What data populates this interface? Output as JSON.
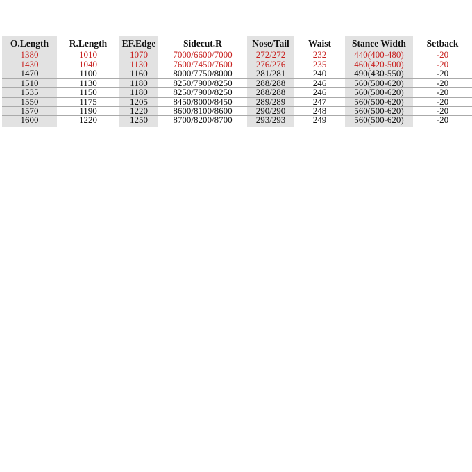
{
  "headers": [
    "O.Length",
    "R.Length",
    "EF.Edge",
    "Sidecut.R",
    "Nose/Tail",
    "Waist",
    "Stance Width",
    "Setback"
  ],
  "highlight_color": "#c8201e",
  "shaded_columns": [
    "O.Length",
    "EF.Edge",
    "Nose/Tail",
    "Stance Width"
  ],
  "rows": [
    {
      "highlighted": true,
      "cells": [
        "1380",
        "1010",
        "1070",
        "7000/6600/7000",
        "272/272",
        "232",
        "440(400-480)",
        "-20"
      ]
    },
    {
      "highlighted": true,
      "cells": [
        "1430",
        "1040",
        "1130",
        "7600/7450/7600",
        "276/276",
        "235",
        "460(420-500)",
        "-20"
      ]
    },
    {
      "highlighted": false,
      "cells": [
        "1470",
        "1100",
        "1160",
        "8000/7750/8000",
        "281/281",
        "240",
        "490(430-550)",
        "-20"
      ]
    },
    {
      "highlighted": false,
      "cells": [
        "1510",
        "1130",
        "1180",
        "8250/7900/8250",
        "288/288",
        "246",
        "560(500-620)",
        "-20"
      ]
    },
    {
      "highlighted": false,
      "cells": [
        "1535",
        "1150",
        "1180",
        "8250/7900/8250",
        "288/288",
        "246",
        "560(500-620)",
        "-20"
      ]
    },
    {
      "highlighted": false,
      "cells": [
        "1550",
        "1175",
        "1205",
        "8450/8000/8450",
        "289/289",
        "247",
        "560(500-620)",
        "-20"
      ]
    },
    {
      "highlighted": false,
      "cells": [
        "1570",
        "1190",
        "1220",
        "8600/8100/8600",
        "290/290",
        "248",
        "560(500-620)",
        "-20"
      ]
    },
    {
      "highlighted": false,
      "cells": [
        "1600",
        "1220",
        "1250",
        "8700/8200/8700",
        "293/293",
        "249",
        "560(500-620)",
        "-20"
      ]
    }
  ]
}
